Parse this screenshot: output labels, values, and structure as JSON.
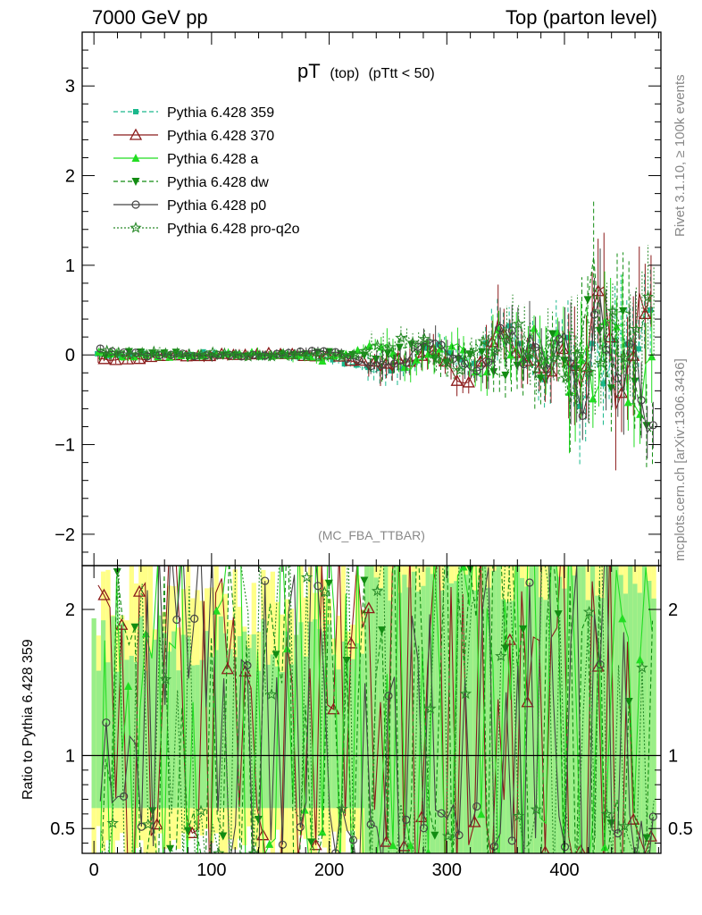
{
  "header": {
    "left": "7000 GeV pp",
    "right": "Top (parton level)"
  },
  "plot_title": {
    "main": "pT",
    "sub1": "(top)",
    "sub2": "(pTtt < 50)"
  },
  "side_labels": {
    "rivet": "Rivet 3.1.10, ≥ 100k events",
    "mcplots": "mcplots.cern.ch [arXiv:1306.3436]"
  },
  "analysis_tag": "(MC_FBA_TTBAR)",
  "ratio_ylabel": "Ratio to Pythia 6.428 359",
  "colors": {
    "s359": "#1ab88c",
    "s370": "#8b1a1a",
    "sa": "#22dd22",
    "sdw": "#128c12",
    "sp0": "#444444",
    "spro": "#2a8a2a",
    "band_yellow": "#ffff88",
    "band_green": "#99ee88"
  },
  "chart_data": [
    {
      "type": "scatter",
      "title": "pT (top) (pTtt < 50)",
      "xlim": [
        -10,
        482
      ],
      "ylim": [
        -2.35,
        3.6
      ],
      "x_ticks": [
        0,
        100,
        200,
        300,
        400
      ],
      "y_ticks": [
        -2,
        -1,
        0,
        1,
        2,
        3
      ],
      "y_tick_labels": [
        "−2",
        "−1",
        "0",
        "1",
        "2",
        "3"
      ],
      "legend": "top-left",
      "series": [
        {
          "name": "Pythia 6.428 359",
          "key": "s359",
          "marker": "square",
          "dash": "dashed",
          "x": [
            5,
            45,
            95,
            145,
            195,
            245,
            270,
            290,
            310,
            325,
            345,
            360,
            375,
            385,
            395,
            405,
            415,
            425,
            435,
            445,
            455,
            470
          ],
          "y": [
            0.0,
            0.0,
            0.02,
            0.0,
            -0.02,
            -0.2,
            -0.1,
            0.1,
            -0.05,
            -0.15,
            0.3,
            0.15,
            0.0,
            -0.4,
            0.3,
            0.0,
            -0.65,
            0.4,
            -0.3,
            0.5,
            -0.2,
            0.6
          ]
        },
        {
          "name": "Pythia 6.428 370",
          "key": "s370",
          "marker": "triangle-open",
          "dash": "solid",
          "x": [
            5,
            45,
            95,
            145,
            195,
            245,
            270,
            290,
            310,
            325,
            345,
            360,
            375,
            385,
            395,
            405,
            415,
            425,
            435,
            445,
            455,
            470
          ],
          "y": [
            -0.05,
            -0.03,
            -0.02,
            0.02,
            0.0,
            -0.12,
            -0.05,
            0.08,
            -0.3,
            -0.2,
            0.4,
            0.0,
            0.2,
            -0.45,
            0.1,
            0.2,
            -0.3,
            0.4,
            0.75,
            -0.7,
            0.1,
            0.65
          ]
        },
        {
          "name": "Pythia 6.428 a",
          "key": "sa",
          "marker": "triangle-filled",
          "dash": "solid",
          "x": [
            5,
            45,
            95,
            145,
            195,
            245,
            270,
            290,
            310,
            325,
            345,
            360,
            375,
            385,
            395,
            405,
            415,
            425,
            435,
            445,
            455,
            470
          ],
          "y": [
            0.02,
            -0.02,
            0.0,
            0.01,
            -0.05,
            0.1,
            -0.15,
            0.05,
            0.1,
            -0.3,
            0.2,
            -0.1,
            0.3,
            -0.2,
            0.45,
            -0.3,
            0.2,
            -0.5,
            0.25,
            0.4,
            -0.6,
            -0.2
          ]
        },
        {
          "name": "Pythia 6.428 dw",
          "key": "sdw",
          "marker": "triangle-down",
          "dash": "dashed",
          "x": [
            5,
            45,
            95,
            145,
            195,
            245,
            270,
            290,
            310,
            325,
            345,
            360,
            375,
            385,
            395,
            405,
            415,
            425,
            435,
            445,
            455,
            470
          ],
          "y": [
            0.0,
            0.03,
            -0.02,
            0.0,
            0.02,
            -0.05,
            0.1,
            -0.1,
            0.0,
            0.15,
            -0.2,
            0.1,
            -0.3,
            0.25,
            0.0,
            -0.55,
            0.3,
            0.95,
            -0.5,
            0.6,
            0.1,
            -1.0
          ]
        },
        {
          "name": "Pythia 6.428 p0",
          "key": "sp0",
          "marker": "circle-open",
          "dash": "solid",
          "x": [
            5,
            45,
            95,
            145,
            195,
            245,
            270,
            290,
            310,
            325,
            345,
            360,
            375,
            385,
            395,
            405,
            415,
            425,
            435,
            445,
            455,
            470
          ],
          "y": [
            0.05,
            0.0,
            0.0,
            -0.01,
            0.05,
            -0.15,
            0.05,
            0.18,
            -0.1,
            -0.2,
            0.25,
            0.05,
            0.1,
            -0.1,
            0.35,
            -0.4,
            -0.4,
            0.5,
            0.2,
            -0.5,
            0.25,
            -1.0
          ]
        },
        {
          "name": "Pythia 6.428 pro-q2o",
          "key": "spro",
          "marker": "star-open",
          "dash": "dotted",
          "x": [
            5,
            45,
            95,
            145,
            195,
            245,
            270,
            290,
            310,
            325,
            345,
            360,
            375,
            385,
            395,
            405,
            415,
            425,
            435,
            445,
            455,
            470
          ],
          "y": [
            0.03,
            0.02,
            0.01,
            0.0,
            -0.03,
            0.05,
            0.2,
            0.0,
            -0.15,
            0.1,
            0.0,
            0.3,
            -0.1,
            0.15,
            -0.3,
            0.2,
            0.1,
            -0.3,
            0.5,
            0.0,
            0.3,
            0.5
          ]
        }
      ]
    },
    {
      "type": "line",
      "title": "",
      "ylabel": "Ratio to Pythia 6.428 359",
      "xlim": [
        -10,
        482
      ],
      "ylim": [
        0.33,
        2.3
      ],
      "x_ticks": [
        0,
        100,
        200,
        300,
        400
      ],
      "y_ticks": [
        0.5,
        1,
        2
      ],
      "y_tick_labels": [
        "0.5",
        "1",
        "2"
      ],
      "reference_line": 1
    }
  ]
}
